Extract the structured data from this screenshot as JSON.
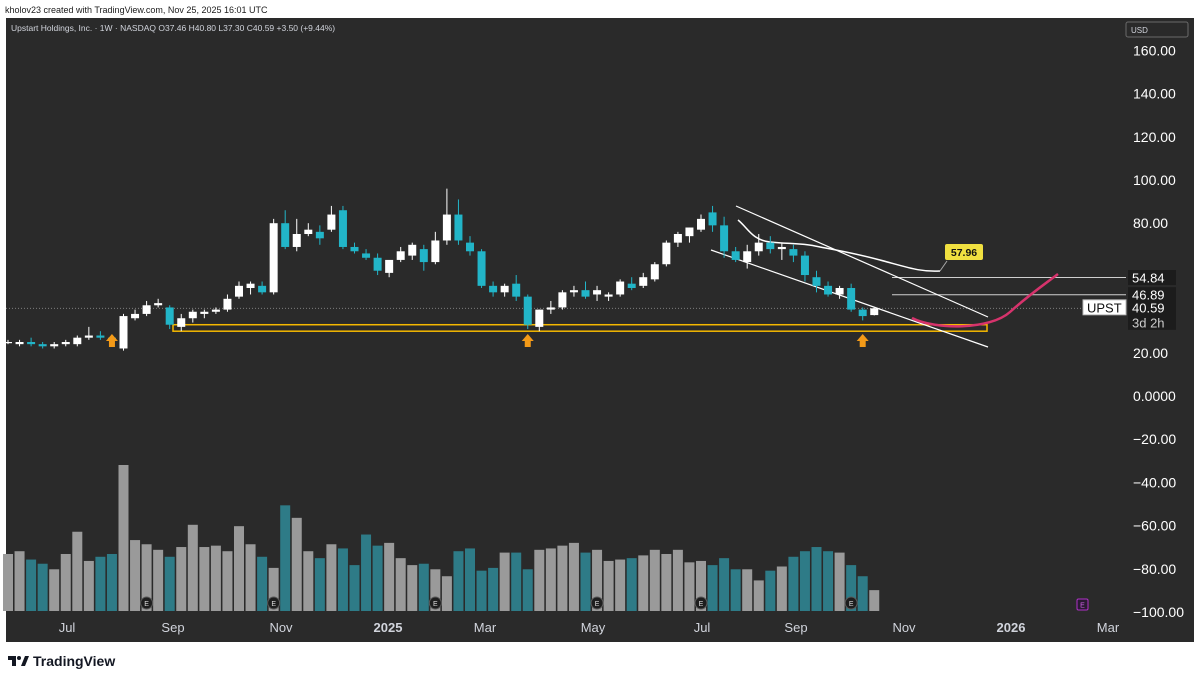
{
  "header": {
    "credit": "kholov23 created with TradingView.com, Nov 25, 2025 16:01 UTC",
    "symbol_info": "Upstart Holdings, Inc. · 1W · NASDAQ  O37.46  H40.80  L37.30  C40.59  +3.50 (+9.44%)",
    "currency": "USD"
  },
  "footer": {
    "brand": "TradingView"
  },
  "colors": {
    "background": "#2a2a2a",
    "up_candle": "#ffffff",
    "down_candle": "#22b5c8",
    "volume_up": "#9a9a9a",
    "volume_down": "#2e7b87",
    "support_zone": "#f5b800",
    "arrow": "#f39a18",
    "channel": "#ffffff",
    "curve": "#d6336c",
    "price_label_bg": "#f0e040"
  },
  "chart_data": {
    "type": "candlestick",
    "title": "Upstart Holdings, Inc. · 1W · NASDAQ",
    "ylabel": "USD",
    "ylim": [
      -100,
      170
    ],
    "y_ticks": [
      "160.00",
      "140.00",
      "120.00",
      "100.00",
      "80.00",
      "20.00",
      "0.0000",
      "−20.00",
      "−40.00",
      "−60.00",
      "−80.00",
      "−100.00"
    ],
    "x_ticks": [
      "Jul",
      "Sep",
      "Nov",
      "2025",
      "Mar",
      "May",
      "Jul",
      "Sep",
      "Nov",
      "2026",
      "Mar"
    ],
    "x_axis_note": "weekly bars; index 0 = first visible week (late Jun 2024); index 75 = week of Nov 24 2025",
    "candles": [
      {
        "i": 0,
        "o": 25,
        "h": 26,
        "l": 24,
        "c": 25
      },
      {
        "i": 1,
        "o": 24,
        "h": 26,
        "l": 23,
        "c": 25
      },
      {
        "i": 2,
        "o": 25,
        "h": 27,
        "l": 23,
        "c": 24
      },
      {
        "i": 3,
        "o": 24,
        "h": 25,
        "l": 22,
        "c": 23
      },
      {
        "i": 4,
        "o": 23,
        "h": 25,
        "l": 22,
        "c": 24
      },
      {
        "i": 5,
        "o": 24,
        "h": 26,
        "l": 23,
        "c": 25
      },
      {
        "i": 6,
        "o": 24,
        "h": 28,
        "l": 23,
        "c": 27
      },
      {
        "i": 7,
        "o": 27,
        "h": 32,
        "l": 26,
        "c": 28
      },
      {
        "i": 8,
        "o": 28,
        "h": 30,
        "l": 26,
        "c": 27
      },
      {
        "i": 9,
        "o": 27,
        "h": 28,
        "l": 25,
        "c": 26
      },
      {
        "i": 10,
        "o": 22,
        "h": 38,
        "l": 21,
        "c": 37
      },
      {
        "i": 11,
        "o": 36,
        "h": 40,
        "l": 35,
        "c": 38
      },
      {
        "i": 12,
        "o": 38,
        "h": 44,
        "l": 37,
        "c": 42
      },
      {
        "i": 13,
        "o": 42,
        "h": 45,
        "l": 41,
        "c": 43
      },
      {
        "i": 14,
        "o": 41,
        "h": 42,
        "l": 31,
        "c": 33
      },
      {
        "i": 15,
        "o": 32,
        "h": 38,
        "l": 30,
        "c": 36
      },
      {
        "i": 16,
        "o": 36,
        "h": 40,
        "l": 34,
        "c": 39
      },
      {
        "i": 17,
        "o": 38,
        "h": 40,
        "l": 36,
        "c": 39
      },
      {
        "i": 18,
        "o": 39,
        "h": 41,
        "l": 38,
        "c": 40
      },
      {
        "i": 19,
        "o": 40,
        "h": 47,
        "l": 39,
        "c": 45
      },
      {
        "i": 20,
        "o": 46,
        "h": 53,
        "l": 45,
        "c": 51
      },
      {
        "i": 21,
        "o": 50,
        "h": 53,
        "l": 47,
        "c": 52
      },
      {
        "i": 22,
        "o": 51,
        "h": 53,
        "l": 47,
        "c": 48
      },
      {
        "i": 23,
        "o": 48,
        "h": 82,
        "l": 47,
        "c": 80
      },
      {
        "i": 24,
        "o": 80,
        "h": 86,
        "l": 68,
        "c": 69
      },
      {
        "i": 25,
        "o": 69,
        "h": 82,
        "l": 67,
        "c": 75
      },
      {
        "i": 26,
        "o": 75,
        "h": 80,
        "l": 74,
        "c": 77
      },
      {
        "i": 27,
        "o": 76,
        "h": 79,
        "l": 70,
        "c": 73
      },
      {
        "i": 28,
        "o": 77,
        "h": 88,
        "l": 76,
        "c": 84
      },
      {
        "i": 29,
        "o": 86,
        "h": 88,
        "l": 68,
        "c": 69
      },
      {
        "i": 30,
        "o": 69,
        "h": 71,
        "l": 66,
        "c": 67
      },
      {
        "i": 31,
        "o": 66,
        "h": 68,
        "l": 63,
        "c": 64
      },
      {
        "i": 32,
        "o": 64,
        "h": 66,
        "l": 56,
        "c": 58
      },
      {
        "i": 33,
        "o": 57,
        "h": 62,
        "l": 55,
        "c": 63
      },
      {
        "i": 34,
        "o": 63,
        "h": 69,
        "l": 62,
        "c": 67
      },
      {
        "i": 35,
        "o": 65,
        "h": 71,
        "l": 63,
        "c": 70
      },
      {
        "i": 36,
        "o": 68,
        "h": 70,
        "l": 58,
        "c": 62
      },
      {
        "i": 37,
        "o": 62,
        "h": 76,
        "l": 61,
        "c": 72
      },
      {
        "i": 38,
        "o": 72,
        "h": 96,
        "l": 70,
        "c": 84
      },
      {
        "i": 39,
        "o": 84,
        "h": 91,
        "l": 70,
        "c": 72
      },
      {
        "i": 40,
        "o": 71,
        "h": 74,
        "l": 65,
        "c": 67
      },
      {
        "i": 41,
        "o": 67,
        "h": 68,
        "l": 50,
        "c": 51
      },
      {
        "i": 42,
        "o": 51,
        "h": 53,
        "l": 46,
        "c": 48
      },
      {
        "i": 43,
        "o": 48,
        "h": 52,
        "l": 46,
        "c": 51
      },
      {
        "i": 44,
        "o": 52,
        "h": 56,
        "l": 44,
        "c": 46
      },
      {
        "i": 45,
        "o": 46,
        "h": 47,
        "l": 31,
        "c": 33
      },
      {
        "i": 46,
        "o": 32,
        "h": 40,
        "l": 30,
        "c": 40
      },
      {
        "i": 47,
        "o": 40,
        "h": 44,
        "l": 38,
        "c": 41
      },
      {
        "i": 48,
        "o": 41,
        "h": 49,
        "l": 40,
        "c": 48
      },
      {
        "i": 49,
        "o": 48,
        "h": 51,
        "l": 46,
        "c": 49
      },
      {
        "i": 50,
        "o": 49,
        "h": 53,
        "l": 45,
        "c": 46
      },
      {
        "i": 51,
        "o": 47,
        "h": 51,
        "l": 44,
        "c": 49
      },
      {
        "i": 52,
        "o": 46,
        "h": 48,
        "l": 44,
        "c": 47
      },
      {
        "i": 53,
        "o": 47,
        "h": 54,
        "l": 46,
        "c": 53
      },
      {
        "i": 54,
        "o": 52,
        "h": 55,
        "l": 49,
        "c": 50
      },
      {
        "i": 55,
        "o": 51,
        "h": 57,
        "l": 50,
        "c": 55
      },
      {
        "i": 56,
        "o": 54,
        "h": 62,
        "l": 53,
        "c": 61
      },
      {
        "i": 57,
        "o": 61,
        "h": 72,
        "l": 60,
        "c": 71
      },
      {
        "i": 58,
        "o": 71,
        "h": 76,
        "l": 69,
        "c": 75
      },
      {
        "i": 59,
        "o": 74,
        "h": 78,
        "l": 71,
        "c": 78
      },
      {
        "i": 60,
        "o": 77,
        "h": 84,
        "l": 76,
        "c": 82
      },
      {
        "i": 61,
        "o": 85,
        "h": 88,
        "l": 76,
        "c": 79
      },
      {
        "i": 62,
        "o": 79,
        "h": 83,
        "l": 64,
        "c": 67
      },
      {
        "i": 63,
        "o": 67,
        "h": 69,
        "l": 62,
        "c": 63
      },
      {
        "i": 64,
        "o": 62,
        "h": 70,
        "l": 59,
        "c": 67
      },
      {
        "i": 65,
        "o": 67,
        "h": 75,
        "l": 65,
        "c": 71
      },
      {
        "i": 66,
        "o": 71,
        "h": 74,
        "l": 66,
        "c": 68
      },
      {
        "i": 67,
        "o": 68,
        "h": 71,
        "l": 63,
        "c": 69
      },
      {
        "i": 68,
        "o": 68,
        "h": 70,
        "l": 62,
        "c": 65
      },
      {
        "i": 69,
        "o": 65,
        "h": 67,
        "l": 53,
        "c": 56
      },
      {
        "i": 70,
        "o": 55,
        "h": 58,
        "l": 48,
        "c": 51
      },
      {
        "i": 71,
        "o": 51,
        "h": 53,
        "l": 46,
        "c": 47
      },
      {
        "i": 72,
        "o": 47,
        "h": 51,
        "l": 45,
        "c": 50
      },
      {
        "i": 73,
        "o": 50,
        "h": 52,
        "l": 39,
        "c": 40
      },
      {
        "i": 74,
        "o": 40,
        "h": 41,
        "l": 35,
        "c": 37
      },
      {
        "i": 75,
        "o": 37.46,
        "h": 40.8,
        "l": 37.3,
        "c": 40.59
      }
    ],
    "volume": [
      4.1,
      4.3,
      3.7,
      3.4,
      3.0,
      4.1,
      5.7,
      3.6,
      3.9,
      4.1,
      10.5,
      5.1,
      4.8,
      4.4,
      3.9,
      4.6,
      6.2,
      4.6,
      4.7,
      4.3,
      6.1,
      4.8,
      3.9,
      3.1,
      7.6,
      6.7,
      4.3,
      3.8,
      4.8,
      4.5,
      3.3,
      5.5,
      4.7,
      4.9,
      3.8,
      3.3,
      3.4,
      3.0,
      2.5,
      4.3,
      4.5,
      2.9,
      3.1,
      4.2,
      4.2,
      3.0,
      4.4,
      4.5,
      4.7,
      4.9,
      4.2,
      4.4,
      3.6,
      3.7,
      3.8,
      4.0,
      4.4,
      4.1,
      4.4,
      3.5,
      3.6,
      3.3,
      3.8,
      3.0,
      3.0,
      2.2,
      2.9,
      3.2,
      3.9,
      4.3,
      4.6,
      4.3,
      4.2,
      3.3,
      2.5,
      1.5
    ],
    "volume_scale": "relative (tallest bar = 1.0)",
    "horizontal_levels": [
      54.84,
      46.89
    ],
    "moving_average_label": "57.96",
    "last_price_label": "40.59",
    "right_labels": [
      "54.84",
      "46.89",
      "40.59",
      "UPST",
      "3d 2h"
    ],
    "support_zone": [
      30,
      33
    ],
    "support_touch_weeks": [
      9,
      45,
      74
    ],
    "earnings_weeks": [
      12,
      23,
      37,
      51,
      60,
      73
    ],
    "upcoming_earnings_week": 89,
    "upcoming_earnings_marker": "E"
  }
}
